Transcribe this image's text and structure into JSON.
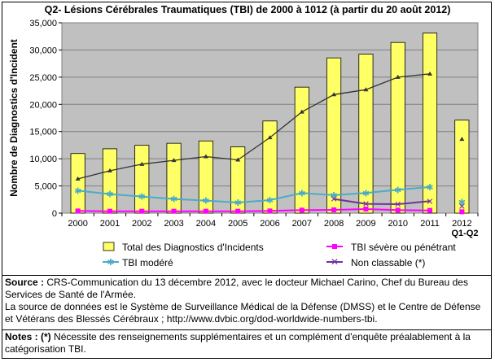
{
  "chart_data": {
    "type": "bar",
    "title": "Q2- Lésions Cérébrales Traumatiques (TBI) de 2000 à 1012 (à partir du 20 août 2012)",
    "ylabel": "Nombre de Diagnostics d'Incident",
    "xlabel": "",
    "ylim": [
      0,
      35000
    ],
    "yticks": [
      "0",
      "5,000",
      "10,000",
      "15,000",
      "20,000",
      "25,000",
      "30,000",
      "35,000"
    ],
    "ytick_values": [
      0,
      5000,
      10000,
      15000,
      20000,
      25000,
      30000,
      35000
    ],
    "categories": [
      "2000",
      "2001",
      "2002",
      "2003",
      "2004",
      "2005",
      "2006",
      "2007",
      "2008",
      "2009",
      "2010",
      "2011",
      "2012"
    ],
    "category_sublabel": "Q1-Q2",
    "grid": true,
    "series": [
      {
        "name": "Total des Diagnostics d'Incidents",
        "kind": "bar",
        "color": "#ffff66",
        "values": [
          10960,
          11830,
          12470,
          12840,
          13270,
          12190,
          16940,
          23160,
          28540,
          29230,
          31380,
          33100,
          17100
        ]
      },
      {
        "name": "TBI modéré",
        "kind": "line",
        "color": "#4bacc6",
        "values": [
          4150,
          3500,
          3050,
          2600,
          2300,
          1950,
          2400,
          3700,
          3300,
          3700,
          4300,
          4800,
          2000
        ]
      },
      {
        "name": "TBI sévère ou pénétrant",
        "kind": "line",
        "color": "#ff00ff",
        "values": [
          400,
          350,
          350,
          350,
          350,
          350,
          400,
          550,
          600,
          750,
          550,
          500,
          250
        ]
      },
      {
        "name": "Non classable (*)",
        "kind": "line",
        "color": "#7030a0",
        "values": [
          null,
          null,
          null,
          null,
          null,
          null,
          null,
          null,
          2600,
          1700,
          1650,
          2200,
          1300
        ]
      },
      {
        "name": "Total trend",
        "kind": "line",
        "color": "#333333",
        "legend": false,
        "values": [
          6300,
          7800,
          9000,
          9700,
          10400,
          9800,
          13900,
          18600,
          21800,
          22700,
          25000,
          25600,
          13600
        ]
      }
    ]
  },
  "source": {
    "label": "Source :",
    "line1": " CRS-Communication du 13 décembre 2012, avec le docteur Michael Carino, Chef du Bureau des Services de Santé de l'Armée.",
    "line2": "La source de données est le Système de Surveillance Médical de la Défense (DMSS) et le Centre de Défense et Vétérans des Blessés Cérébraux ; http://www.dvbic.org/dod-worldwide-numbers-tbi."
  },
  "notes": {
    "label": "Notes :",
    "marker": "(*)",
    "text": " Nécessite des renseignements supplémentaires et un complément d'enquête préalablement à la catégorisation TBI."
  }
}
